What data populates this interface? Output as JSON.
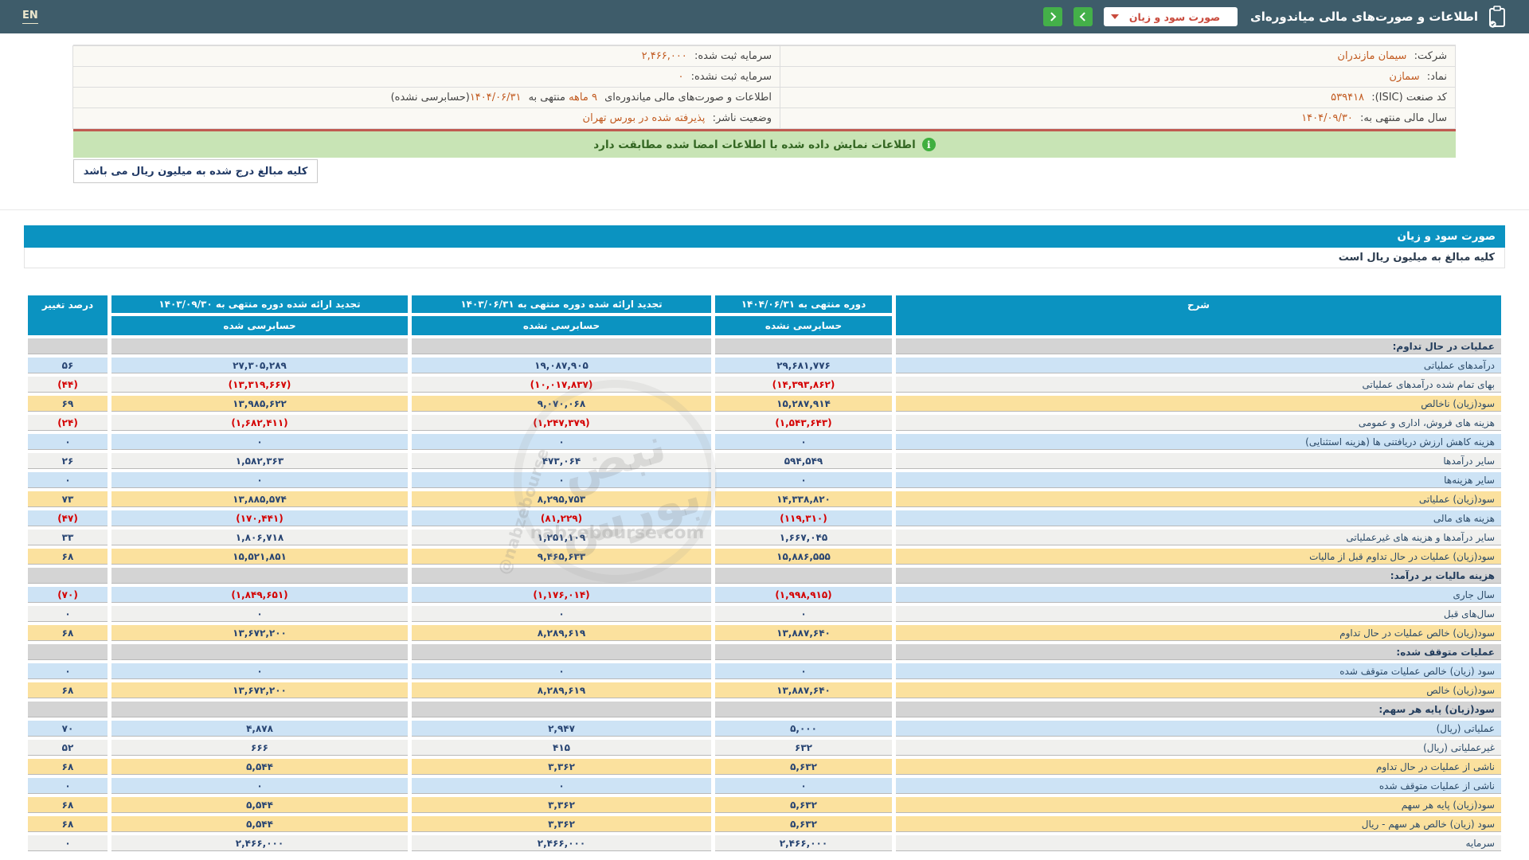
{
  "topbar": {
    "en_label": "EN",
    "title": "اطلاعات و صورت‌های مالی میاندوره‌ای",
    "dropdown_value": "صورت سود و زیان"
  },
  "icons": {
    "clipboard": "clipboard-icon",
    "dropdown_caret": "chevron-down-icon",
    "nav_back": "chevron-left-icon",
    "nav_forward": "chevron-right-icon",
    "banner_info": "info-icon"
  },
  "info": {
    "right": [
      {
        "label": "شرکت:",
        "value": "سیمان مازندران"
      },
      {
        "label": "نماد:",
        "value": "سمازن"
      },
      {
        "label": "کد صنعت (ISIC):",
        "value": "۵۳۹۴۱۸"
      },
      {
        "label": "سال مالی منتهی به:",
        "value": "۱۴۰۴/۰۹/۳۰"
      }
    ],
    "left": [
      {
        "label": "سرمایه ثبت شده:",
        "value": "۲,۴۶۶,۰۰۰"
      },
      {
        "label": "سرمایه ثبت نشده:",
        "value": "۰"
      },
      {
        "label": "",
        "value": ""
      },
      {
        "label": "وضعیت ناشر:",
        "value": "پذیرفته شده در بورس تهران"
      }
    ],
    "period_row": {
      "t1": "اطلاعات و صورت‌های مالی میاندوره‌ای ",
      "h1": "۹ ماهه",
      "t2": " منتهی به ",
      "h2": "۱۴۰۴/۰۶/۳۱",
      "t3": "(حسابرسی نشده)"
    }
  },
  "banner": {
    "text": "اطلاعات نمایش داده شده با اطلاعات امضا شده مطابقت دارد",
    "icon_glyph": "i"
  },
  "note_box": "کلیه مبالغ درج شده به میلیون ریال می باشد",
  "statement": {
    "title": "صورت سود و زیان",
    "subtitle": "کلیه مبالغ به میلیون ریال است"
  },
  "table": {
    "header": {
      "desc": "شرح",
      "col1_period": "دوره منتهی به ۱۴۰۴/۰۶/۳۱",
      "col1_audit": "حسابرسی نشده",
      "col2_period": "تجدید ارائه شده دوره منتهی به ۱۴۰۳/۰۶/۳۱",
      "col2_audit": "حسابرسی نشده",
      "col3_period": "تجدید ارائه شده دوره منتهی به ۱۴۰۳/۰۹/۳۰",
      "col3_audit": "حسابرسی شده",
      "pct": "درصد تغییر"
    },
    "rows": [
      {
        "kind": "section",
        "label": "عملیات در حال تداوم:"
      },
      {
        "kind": "data",
        "style": "blue",
        "neg": false,
        "label": "درآمدهای عملیاتی",
        "v1": "۲۹,۶۸۱,۷۷۶",
        "v2": "۱۹,۰۸۷,۹۰۵",
        "v3": "۲۷,۳۰۵,۲۸۹",
        "pct": "۵۶"
      },
      {
        "kind": "data",
        "style": "white",
        "neg": true,
        "label": "بهای تمام شده درآمدهای عملیاتی",
        "v1": "(۱۴,۳۹۳,۸۶۲)",
        "v2": "(۱۰,۰۱۷,۸۳۷)",
        "v3": "(۱۳,۳۱۹,۶۶۷)",
        "pct": "(۴۴)"
      },
      {
        "kind": "data",
        "style": "yellow",
        "neg": false,
        "label": "سود(زیان) ناخالص",
        "v1": "۱۵,۲۸۷,۹۱۴",
        "v2": "۹,۰۷۰,۰۶۸",
        "v3": "۱۳,۹۸۵,۶۲۲",
        "pct": "۶۹"
      },
      {
        "kind": "data",
        "style": "white",
        "neg": true,
        "label": "هزینه های فروش، اداری و عمومی",
        "v1": "(۱,۵۴۳,۶۴۳)",
        "v2": "(۱,۲۴۷,۳۷۹)",
        "v3": "(۱,۶۸۲,۴۱۱)",
        "pct": "(۲۴)"
      },
      {
        "kind": "data",
        "style": "blue",
        "neg": false,
        "label": "هزینه کاهش ارزش دریافتنی ها (هزینه استثنایی)",
        "v1": "۰",
        "v2": "۰",
        "v3": "۰",
        "pct": "۰"
      },
      {
        "kind": "data",
        "style": "white",
        "neg": false,
        "label": "سایر درآمدها",
        "v1": "۵۹۴,۵۴۹",
        "v2": "۴۷۳,۰۶۴",
        "v3": "۱,۵۸۲,۳۶۳",
        "pct": "۲۶"
      },
      {
        "kind": "data",
        "style": "blue",
        "neg": false,
        "label": "سایر هزینه‌ها",
        "v1": "۰",
        "v2": "۰",
        "v3": "۰",
        "pct": "۰"
      },
      {
        "kind": "data",
        "style": "yellow",
        "neg": false,
        "label": "سود(زیان) عملیاتی",
        "v1": "۱۴,۳۳۸,۸۲۰",
        "v2": "۸,۲۹۵,۷۵۳",
        "v3": "۱۳,۸۸۵,۵۷۴",
        "pct": "۷۳"
      },
      {
        "kind": "data",
        "style": "blue",
        "neg": true,
        "label": "هزینه های مالی",
        "v1": "(۱۱۹,۳۱۰)",
        "v2": "(۸۱,۲۲۹)",
        "v3": "(۱۷۰,۴۴۱)",
        "pct": "(۴۷)"
      },
      {
        "kind": "data",
        "style": "white",
        "neg": false,
        "label": "سایر درآمدها و هزینه های غیرعملیاتی",
        "v1": "۱,۶۶۷,۰۴۵",
        "v2": "۱,۲۵۱,۱۰۹",
        "v3": "۱,۸۰۶,۷۱۸",
        "pct": "۳۳"
      },
      {
        "kind": "data",
        "style": "yellow",
        "neg": false,
        "label": "سود(زیان) عملیات در حال تداوم قبل از مالیات",
        "v1": "۱۵,۸۸۶,۵۵۵",
        "v2": "۹,۴۶۵,۶۳۳",
        "v3": "۱۵,۵۲۱,۸۵۱",
        "pct": "۶۸"
      },
      {
        "kind": "section",
        "label": "هزینه مالیات بر درآمد:"
      },
      {
        "kind": "data",
        "style": "blue",
        "neg": true,
        "label": "سال جاری",
        "v1": "(۱,۹۹۸,۹۱۵)",
        "v2": "(۱,۱۷۶,۰۱۴)",
        "v3": "(۱,۸۴۹,۶۵۱)",
        "pct": "(۷۰)"
      },
      {
        "kind": "data",
        "style": "white",
        "neg": false,
        "label": "سال‌های قبل",
        "v1": "۰",
        "v2": "۰",
        "v3": "۰",
        "pct": "۰"
      },
      {
        "kind": "data",
        "style": "yellow",
        "neg": false,
        "label": "سود(زیان) خالص عملیات در حال تداوم",
        "v1": "۱۳,۸۸۷,۶۴۰",
        "v2": "۸,۲۸۹,۶۱۹",
        "v3": "۱۳,۶۷۲,۲۰۰",
        "pct": "۶۸"
      },
      {
        "kind": "section",
        "label": "عملیات متوقف شده:"
      },
      {
        "kind": "data",
        "style": "blue",
        "neg": false,
        "label": "سود (زیان) خالص عملیات متوقف شده",
        "v1": "۰",
        "v2": "۰",
        "v3": "۰",
        "pct": "۰"
      },
      {
        "kind": "data",
        "style": "yellow",
        "neg": false,
        "label": "سود(زیان) خالص",
        "v1": "۱۳,۸۸۷,۶۴۰",
        "v2": "۸,۲۸۹,۶۱۹",
        "v3": "۱۳,۶۷۲,۲۰۰",
        "pct": "۶۸"
      },
      {
        "kind": "section",
        "label": "سود(زیان) پایه هر سهم:"
      },
      {
        "kind": "data",
        "style": "blue",
        "neg": false,
        "label": "عملیاتی (ریال)",
        "v1": "۵,۰۰۰",
        "v2": "۲,۹۴۷",
        "v3": "۴,۸۷۸",
        "pct": "۷۰"
      },
      {
        "kind": "data",
        "style": "white",
        "neg": false,
        "label": "غیرعملیاتی (ریال)",
        "v1": "۶۳۲",
        "v2": "۴۱۵",
        "v3": "۶۶۶",
        "pct": "۵۲"
      },
      {
        "kind": "data",
        "style": "yellow",
        "neg": false,
        "label": "ناشی از عملیات در حال تداوم",
        "v1": "۵,۶۳۲",
        "v2": "۳,۳۶۲",
        "v3": "۵,۵۴۴",
        "pct": "۶۸"
      },
      {
        "kind": "data",
        "style": "blue",
        "neg": false,
        "label": "ناشی از عملیات متوقف شده",
        "v1": "۰",
        "v2": "۰",
        "v3": "۰",
        "pct": "۰"
      },
      {
        "kind": "data",
        "style": "yellow",
        "neg": false,
        "label": "سود(زیان) پایه هر سهم",
        "v1": "۵,۶۳۲",
        "v2": "۳,۳۶۲",
        "v3": "۵,۵۴۴",
        "pct": "۶۸"
      },
      {
        "kind": "data",
        "style": "yellow",
        "neg": false,
        "label": "سود (زیان) خالص هر سهم - ریال",
        "v1": "۵,۶۳۲",
        "v2": "۳,۳۶۲",
        "v3": "۵,۵۴۴",
        "pct": "۶۸"
      },
      {
        "kind": "data",
        "style": "white",
        "neg": false,
        "label": "سرمایه",
        "v1": "۲,۴۶۶,۰۰۰",
        "v2": "۲,۴۶۶,۰۰۰",
        "v3": "۲,۴۶۶,۰۰۰",
        "pct": "۰"
      }
    ]
  },
  "watermark": {
    "brand": "نبض بورس",
    "site": "nabzebourse.com",
    "handle": "@nabzebourse"
  },
  "colors": {
    "topbar": "#3e5c6a",
    "blue": "#0b93c1",
    "row-blue": "#cde3f5",
    "row-white": "#f0f0ee",
    "row-yellow": "#fbe19e",
    "row-gray": "#d4d4d4",
    "navy": "#274472",
    "label": "#2b4a68",
    "red": "#d40000",
    "orange": "#c25b21",
    "banner-bg": "#c8e4b5",
    "banner-text": "#336622",
    "green": "#44b049",
    "dd-red": "#c94a3c",
    "divider-red": "#c05a50"
  }
}
